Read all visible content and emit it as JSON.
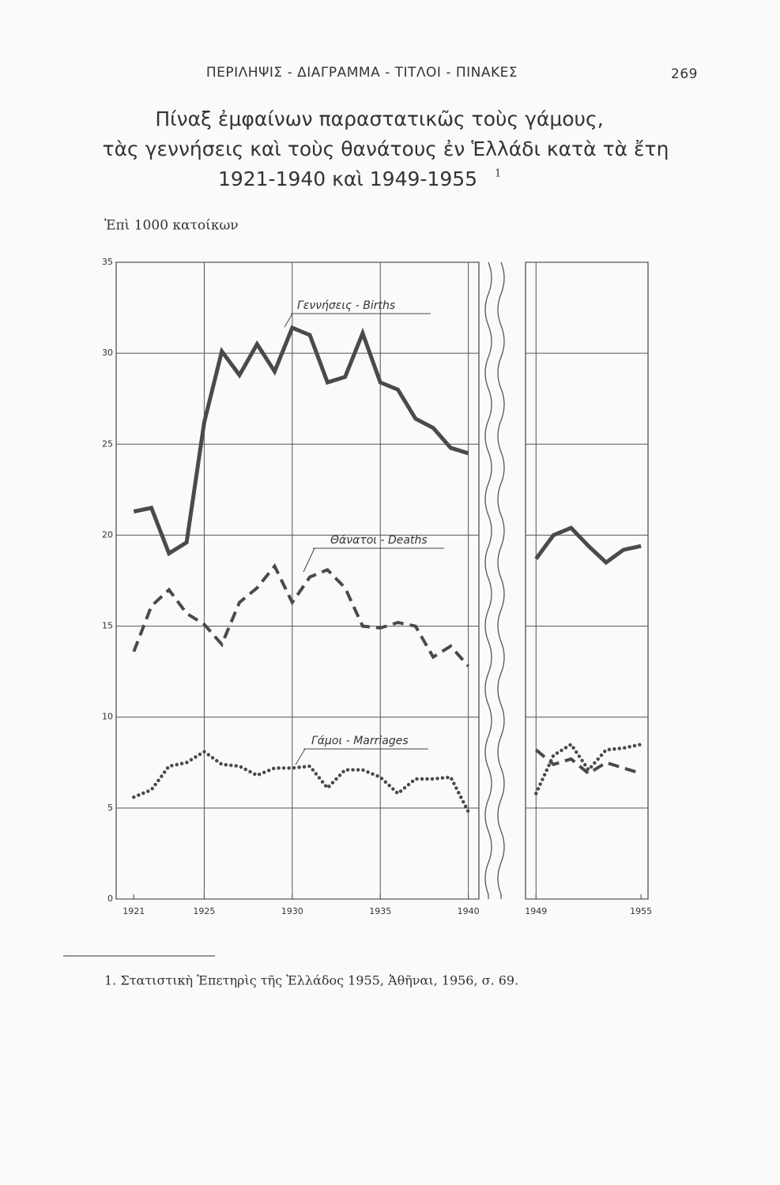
{
  "header": "ΠΕΡΙΛΗΨΙΣ - ΔΙΑΓΡΑΜΜΑ - ΤΙΤΛΟΙ - ΠΙΝΑΚΕΣ",
  "page_number": "269",
  "footnote": "1. Στατιστικὴ Ἐπετηρὶς τῆς Ἑλλάδος 1955, Ἀθῆναι, 1956, σ. 69.",
  "chart_data": {
    "type": "line",
    "title": [
      "Πίναξ ἐμφαίνων παραστατικῶς τοὺς γάμους,",
      "τὰς γεννήσεις καὶ τοὺς θανάτους ἐν Ἑλλάδι κατὰ τὰ ἔτη",
      "1921-1940 καὶ 1949-1955"
    ],
    "title_note": "1",
    "ylabel": "Ἐπὶ 1000 κατοίκων",
    "x": [
      1921,
      1922,
      1923,
      1924,
      1925,
      1926,
      1927,
      1928,
      1929,
      1930,
      1931,
      1932,
      1933,
      1934,
      1935,
      1936,
      1937,
      1938,
      1939,
      1940,
      1949,
      1950,
      1951,
      1952,
      1953,
      1954,
      1955
    ],
    "xlim": [
      1920,
      1955.4
    ],
    "axis_break": [
      1940.6,
      1948.4
    ],
    "xticks": [
      1921,
      1925,
      1930,
      1935,
      1940,
      1949,
      1955
    ],
    "ylim": [
      0,
      35
    ],
    "yticks": [
      0,
      5,
      10,
      15,
      20,
      25,
      30,
      35
    ],
    "grid": true,
    "series": [
      {
        "name": "Γεννήσεις - Births",
        "color": "#4a4a4a",
        "style": "solid",
        "values": [
          21.3,
          21.5,
          19.0,
          19.6,
          26.2,
          30.1,
          28.8,
          30.5,
          29.0,
          31.4,
          31.0,
          28.4,
          28.7,
          31.1,
          28.4,
          28.0,
          26.4,
          25.9,
          24.8,
          24.5,
          18.7,
          20.0,
          20.4,
          19.4,
          18.5,
          19.2,
          19.4
        ]
      },
      {
        "name": "Θάνατοι - Deaths",
        "color": "#4a4a4a",
        "style": "dashed",
        "values": [
          13.6,
          16.1,
          17.0,
          15.7,
          15.1,
          14.0,
          16.3,
          17.1,
          18.3,
          16.3,
          17.7,
          18.1,
          17.1,
          15.0,
          14.9,
          15.2,
          15.0,
          13.3,
          13.9,
          12.8,
          8.2,
          7.4,
          7.7,
          6.9,
          7.5,
          7.2,
          6.9
        ]
      },
      {
        "name": "Γάμοι - Marriages",
        "color": "#4a4a4a",
        "style": "dotted",
        "values": [
          5.6,
          6.0,
          7.3,
          7.5,
          8.1,
          7.4,
          7.3,
          6.8,
          7.2,
          7.2,
          7.3,
          6.1,
          7.1,
          7.1,
          6.7,
          5.8,
          6.6,
          6.6,
          6.7,
          4.8,
          5.8,
          7.9,
          8.5,
          7.1,
          8.2,
          8.3,
          8.5
        ]
      }
    ]
  }
}
